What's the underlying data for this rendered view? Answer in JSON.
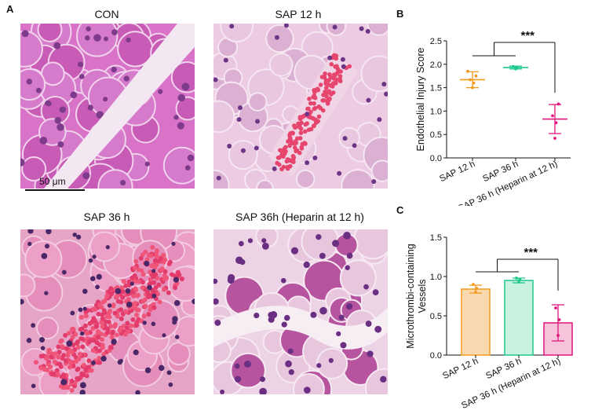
{
  "panel_a": {
    "label": "A",
    "images": [
      {
        "title": "CON",
        "tissue": "normal"
      },
      {
        "title": "SAP 12 h",
        "tissue": "vessel"
      },
      {
        "title": "SAP 36 h",
        "tissue": "blood"
      },
      {
        "title": "SAP 36h (Heparin at 12 h)",
        "tissue": "vessel2"
      }
    ],
    "scale_bar": "50 μm"
  },
  "chart_data": [
    {
      "panel": "B",
      "type": "scatter",
      "ylabel": "Endothelial Injury Score",
      "categories": [
        "SAP 12 h",
        "SAP 36 h",
        "SAP 36 h (Heparin at 12 h)"
      ],
      "means": [
        1.67,
        1.93,
        0.83
      ],
      "sd": [
        0.17,
        0.03,
        0.31
      ],
      "points": [
        [
          1.5,
          1.6,
          1.67,
          1.75,
          1.85
        ],
        [
          1.9,
          1.93,
          1.95
        ],
        [
          0.42,
          0.75,
          0.9,
          1.15
        ]
      ],
      "colors": [
        "#f39a1d",
        "#1ec98c",
        "#e0157d"
      ],
      "ylim": [
        0,
        2.5
      ],
      "yticks": [
        0.0,
        0.5,
        1.0,
        1.5,
        2.0,
        2.5
      ],
      "significance": "***"
    },
    {
      "panel": "C",
      "type": "bar",
      "ylabel": "Microthrombi-containing Vessels",
      "categories": [
        "SAP 12 h",
        "SAP 36 h",
        "SAP 36 h (Heparin at 12 h)"
      ],
      "values": [
        0.84,
        0.95,
        0.41
      ],
      "sd": [
        0.05,
        0.03,
        0.23
      ],
      "points": [
        [
          0.8,
          0.85,
          0.9
        ],
        [
          0.93,
          0.96,
          0.98
        ],
        [
          0.25,
          0.45,
          0.6
        ]
      ],
      "colors": [
        "#f39a1d",
        "#1ec98c",
        "#e0157d"
      ],
      "fills": [
        "#fbd9b0",
        "#c9f2e0",
        "#f7c3db"
      ],
      "ylim": [
        0,
        1.5
      ],
      "yticks": [
        0.0,
        0.5,
        1.0,
        1.5
      ],
      "significance": "***"
    }
  ]
}
